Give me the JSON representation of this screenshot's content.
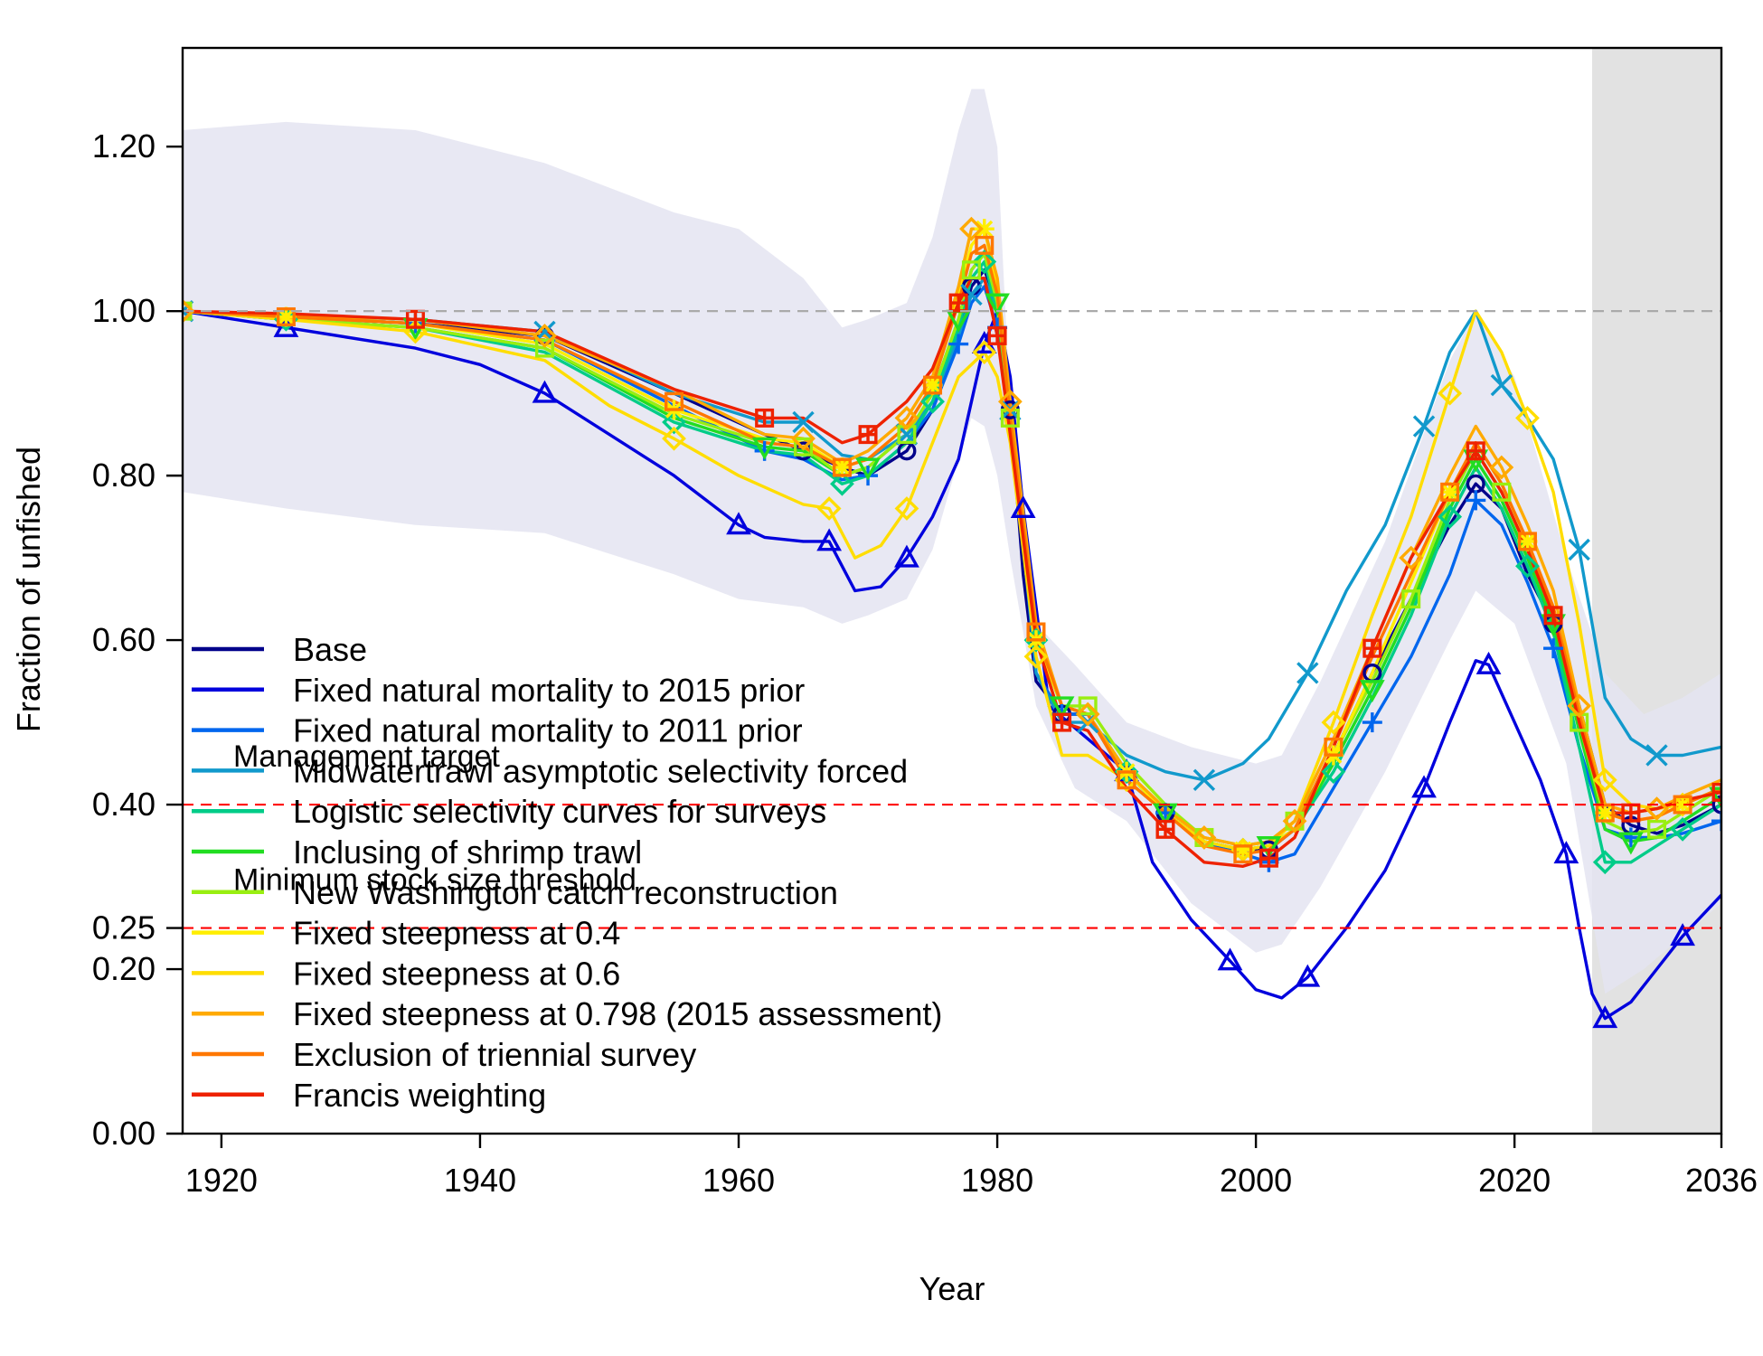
{
  "chart_data": {
    "type": "line",
    "xlabel": "Year",
    "ylabel": "Fraction of unfished",
    "xlim": [
      1917,
      2036
    ],
    "ylim": [
      0,
      1.32
    ],
    "x_ticks": [
      1920,
      1940,
      1960,
      1980,
      2000,
      2020,
      2036
    ],
    "x_tick_labels": [
      "1920",
      "1940",
      "1960",
      "1980",
      "2000",
      "2020",
      "2036"
    ],
    "y_ticks": [
      0,
      0.2,
      0.25,
      0.4,
      0.6,
      0.8,
      1.0,
      1.2
    ],
    "y_tick_labels": [
      "0.00",
      "0.20",
      "0.25",
      "0.40",
      "0.60",
      "0.80",
      "1.00",
      "1.20"
    ],
    "forecast_region": {
      "start": 2026,
      "end": 2036,
      "color": "#e2e2e2"
    },
    "reference_lines": [
      {
        "y": 1.0,
        "label": "",
        "color": "#aaaaaa"
      },
      {
        "y": 0.4,
        "label": "Management target",
        "color": "#ff0000"
      },
      {
        "y": 0.25,
        "label": "Minimum stock size threshold",
        "color": "#ff0000"
      }
    ],
    "uncertainty_band": {
      "color": "#e4e4f1",
      "x": [
        1917,
        1925,
        1935,
        1945,
        1955,
        1960,
        1965,
        1968,
        1970,
        1973,
        1975,
        1977,
        1978,
        1979,
        1980,
        1981,
        1983,
        1986,
        1990,
        1995,
        2000,
        2002,
        2005,
        2010,
        2015,
        2017,
        2020,
        2024,
        2027,
        2030,
        2033,
        2036
      ],
      "upper": [
        1.22,
        1.23,
        1.22,
        1.18,
        1.12,
        1.1,
        1.04,
        0.98,
        0.99,
        1.01,
        1.09,
        1.22,
        1.27,
        1.27,
        1.2,
        0.88,
        0.62,
        0.57,
        0.5,
        0.47,
        0.45,
        0.46,
        0.55,
        0.72,
        0.94,
        1.0,
        0.92,
        0.7,
        0.56,
        0.51,
        0.53,
        0.56
      ],
      "lower": [
        0.78,
        0.76,
        0.74,
        0.73,
        0.68,
        0.65,
        0.64,
        0.62,
        0.63,
        0.65,
        0.71,
        0.82,
        0.87,
        0.86,
        0.8,
        0.7,
        0.52,
        0.42,
        0.38,
        0.28,
        0.22,
        0.23,
        0.3,
        0.44,
        0.6,
        0.66,
        0.62,
        0.45,
        0.17,
        0.2,
        0.24,
        0.28
      ]
    },
    "series": [
      {
        "name": "Base",
        "color": "#00008b",
        "marker": "circle",
        "x": [
          1917,
          1925,
          1935,
          1945,
          1955,
          1962,
          1965,
          1968,
          1970,
          1973,
          1975,
          1977,
          1978,
          1979,
          1980,
          1981,
          1982,
          1983,
          1985,
          1987,
          1990,
          1993,
          1996,
          1999,
          2001,
          2003,
          2006,
          2009,
          2012,
          2015,
          2017,
          2019,
          2021,
          2023,
          2025,
          2027,
          2029,
          2031,
          2033,
          2036
        ],
        "y": [
          1.0,
          0.993,
          0.985,
          0.97,
          0.9,
          0.85,
          0.83,
          0.81,
          0.8,
          0.83,
          0.88,
          0.97,
          1.03,
          1.05,
          1.01,
          0.88,
          0.68,
          0.55,
          0.51,
          0.51,
          0.44,
          0.39,
          0.355,
          0.345,
          0.345,
          0.37,
          0.46,
          0.56,
          0.65,
          0.74,
          0.79,
          0.76,
          0.68,
          0.62,
          0.52,
          0.4,
          0.375,
          0.365,
          0.375,
          0.4
        ]
      },
      {
        "name": "Fixed natural mortality to 2015 prior",
        "color": "#0000dd",
        "marker": "triangle",
        "x": [
          1917,
          1925,
          1935,
          1940,
          1945,
          1950,
          1955,
          1960,
          1962,
          1965,
          1967,
          1969,
          1971,
          1973,
          1975,
          1977,
          1979,
          1980,
          1981,
          1982,
          1984,
          1987,
          1990,
          1992,
          1995,
          1998,
          2000,
          2002,
          2004,
          2007,
          2010,
          2013,
          2015,
          2017,
          2018,
          2020,
          2022,
          2024,
          2025,
          2026,
          2027,
          2029,
          2031,
          2033,
          2036
        ],
        "y": [
          1.0,
          0.98,
          0.955,
          0.935,
          0.9,
          0.85,
          0.8,
          0.74,
          0.725,
          0.72,
          0.72,
          0.66,
          0.665,
          0.7,
          0.75,
          0.82,
          0.96,
          1.0,
          0.92,
          0.76,
          0.52,
          0.48,
          0.44,
          0.33,
          0.26,
          0.21,
          0.175,
          0.165,
          0.19,
          0.25,
          0.32,
          0.42,
          0.5,
          0.575,
          0.57,
          0.5,
          0.43,
          0.34,
          0.25,
          0.17,
          0.14,
          0.16,
          0.2,
          0.24,
          0.29
        ]
      },
      {
        "name": "Fixed natural mortality to 2011 prior",
        "color": "#0066ee",
        "marker": "plus",
        "x": [
          1917,
          1925,
          1935,
          1945,
          1955,
          1962,
          1965,
          1968,
          1970,
          1973,
          1975,
          1977,
          1978,
          1979,
          1980,
          1981,
          1983,
          1985,
          1987,
          1990,
          1993,
          1996,
          1999,
          2001,
          2003,
          2006,
          2009,
          2012,
          2015,
          2017,
          2019,
          2021,
          2023,
          2025,
          2027,
          2029,
          2031,
          2033,
          2036
        ],
        "y": [
          1.0,
          0.993,
          0.985,
          0.965,
          0.885,
          0.83,
          0.82,
          0.795,
          0.8,
          0.84,
          0.88,
          0.96,
          1.01,
          1.03,
          0.98,
          0.87,
          0.56,
          0.51,
          0.51,
          0.43,
          0.39,
          0.355,
          0.34,
          0.33,
          0.34,
          0.42,
          0.5,
          0.58,
          0.68,
          0.77,
          0.74,
          0.67,
          0.59,
          0.47,
          0.37,
          0.36,
          0.36,
          0.365,
          0.38
        ]
      },
      {
        "name": "Midwatertrawl asymptotic selectivity forced",
        "color": "#1199cc",
        "marker": "cross",
        "x": [
          1917,
          1925,
          1935,
          1945,
          1955,
          1962,
          1965,
          1968,
          1970,
          1973,
          1975,
          1977,
          1978,
          1979,
          1980,
          1981,
          1983,
          1985,
          1987,
          1990,
          1993,
          1996,
          1999,
          2001,
          2004,
          2007,
          2010,
          2013,
          2015,
          2017,
          2019,
          2021,
          2023,
          2025,
          2027,
          2029,
          2031,
          2033,
          2036
        ],
        "y": [
          1.0,
          0.995,
          0.99,
          0.975,
          0.9,
          0.865,
          0.865,
          0.825,
          0.82,
          0.85,
          0.89,
          0.97,
          1.02,
          1.04,
          1.0,
          0.88,
          0.56,
          0.5,
          0.5,
          0.46,
          0.44,
          0.43,
          0.45,
          0.48,
          0.56,
          0.66,
          0.74,
          0.86,
          0.95,
          1.0,
          0.91,
          0.87,
          0.82,
          0.71,
          0.53,
          0.48,
          0.46,
          0.46,
          0.47
        ]
      },
      {
        "name": "Logistic selectivity curves for surveys",
        "color": "#00cc88",
        "marker": "diamond",
        "x": [
          1917,
          1925,
          1935,
          1945,
          1955,
          1962,
          1965,
          1968,
          1970,
          1973,
          1975,
          1977,
          1978,
          1979,
          1980,
          1981,
          1983,
          1985,
          1987,
          1990,
          1993,
          1996,
          1999,
          2001,
          2003,
          2006,
          2009,
          2012,
          2015,
          2017,
          2019,
          2021,
          2023,
          2025,
          2027,
          2029,
          2031,
          2033,
          2036
        ],
        "y": [
          1.0,
          0.99,
          0.98,
          0.95,
          0.865,
          0.83,
          0.825,
          0.79,
          0.8,
          0.84,
          0.89,
          0.98,
          1.04,
          1.06,
          1.0,
          0.87,
          0.6,
          0.52,
          0.51,
          0.44,
          0.39,
          0.355,
          0.345,
          0.35,
          0.37,
          0.44,
          0.53,
          0.63,
          0.75,
          0.81,
          0.76,
          0.69,
          0.61,
          0.47,
          0.33,
          0.33,
          0.35,
          0.37,
          0.4
        ]
      },
      {
        "name": "Inclusing of shrimp trawl",
        "color": "#22dd22",
        "marker": "triangle-down",
        "x": [
          1917,
          1925,
          1935,
          1945,
          1955,
          1962,
          1965,
          1968,
          1970,
          1973,
          1975,
          1977,
          1978,
          1979,
          1980,
          1981,
          1983,
          1985,
          1987,
          1990,
          1993,
          1996,
          1999,
          2001,
          2003,
          2006,
          2009,
          2012,
          2015,
          2017,
          2019,
          2021,
          2023,
          2025,
          2027,
          2029,
          2031,
          2033,
          2036
        ],
        "y": [
          1.0,
          0.99,
          0.98,
          0.955,
          0.87,
          0.835,
          0.83,
          0.8,
          0.81,
          0.85,
          0.9,
          0.99,
          1.05,
          1.07,
          1.01,
          0.87,
          0.6,
          0.52,
          0.51,
          0.44,
          0.39,
          0.355,
          0.345,
          0.35,
          0.37,
          0.45,
          0.54,
          0.64,
          0.76,
          0.82,
          0.77,
          0.7,
          0.62,
          0.49,
          0.37,
          0.355,
          0.36,
          0.38,
          0.41
        ]
      },
      {
        "name": "New Washington catch reconstruction",
        "color": "#99ee11",
        "marker": "square",
        "x": [
          1917,
          1925,
          1935,
          1945,
          1955,
          1962,
          1965,
          1968,
          1970,
          1973,
          1975,
          1977,
          1978,
          1979,
          1980,
          1981,
          1983,
          1985,
          1987,
          1990,
          1993,
          1996,
          1999,
          2001,
          2003,
          2006,
          2009,
          2012,
          2015,
          2017,
          2019,
          2021,
          2023,
          2025,
          2027,
          2029,
          2031,
          2033,
          2036
        ],
        "y": [
          1.0,
          0.99,
          0.98,
          0.955,
          0.875,
          0.84,
          0.835,
          0.8,
          0.81,
          0.85,
          0.9,
          0.99,
          1.05,
          1.07,
          1.01,
          0.87,
          0.6,
          0.52,
          0.52,
          0.45,
          0.4,
          0.36,
          0.35,
          0.355,
          0.38,
          0.46,
          0.55,
          0.65,
          0.77,
          0.83,
          0.78,
          0.71,
          0.63,
          0.5,
          0.38,
          0.365,
          0.37,
          0.39,
          0.42
        ]
      },
      {
        "name": "Fixed steepness at 0.4",
        "color": "#ffee00",
        "marker": "asterisk",
        "x": [
          1917,
          1925,
          1935,
          1945,
          1955,
          1962,
          1965,
          1968,
          1970,
          1973,
          1975,
          1977,
          1978,
          1979,
          1980,
          1981,
          1983,
          1985,
          1987,
          1990,
          1993,
          1996,
          1999,
          2001,
          2003,
          2006,
          2009,
          2012,
          2015,
          2017,
          2019,
          2021,
          2023,
          2025,
          2027,
          2029,
          2031,
          2033,
          2036
        ],
        "y": [
          1.0,
          0.993,
          0.985,
          0.96,
          0.88,
          0.845,
          0.84,
          0.81,
          0.82,
          0.86,
          0.91,
          1.02,
          1.08,
          1.1,
          1.03,
          0.88,
          0.6,
          0.52,
          0.51,
          0.44,
          0.39,
          0.355,
          0.345,
          0.35,
          0.37,
          0.46,
          0.56,
          0.67,
          0.78,
          0.84,
          0.79,
          0.72,
          0.64,
          0.51,
          0.39,
          0.38,
          0.385,
          0.4,
          0.42
        ]
      },
      {
        "name": "Fixed steepness at 0.6",
        "color": "#ffdd00",
        "marker": "diamond",
        "x": [
          1917,
          1925,
          1935,
          1945,
          1950,
          1955,
          1960,
          1965,
          1967,
          1969,
          1971,
          1973,
          1975,
          1977,
          1979,
          1980,
          1981,
          1983,
          1985,
          1987,
          1990,
          1993,
          1996,
          1999,
          2001,
          2003,
          2006,
          2009,
          2012,
          2015,
          2017,
          2019,
          2021,
          2023,
          2025,
          2027,
          2029,
          2031,
          2033,
          2036
        ],
        "y": [
          1.0,
          0.99,
          0.975,
          0.94,
          0.885,
          0.845,
          0.8,
          0.765,
          0.76,
          0.7,
          0.715,
          0.76,
          0.84,
          0.92,
          0.95,
          0.92,
          0.84,
          0.58,
          0.46,
          0.46,
          0.43,
          0.39,
          0.355,
          0.345,
          0.35,
          0.38,
          0.5,
          0.63,
          0.75,
          0.9,
          1.0,
          0.95,
          0.87,
          0.78,
          0.62,
          0.43,
          0.4,
          0.395,
          0.4,
          0.42
        ]
      },
      {
        "name": "Fixed steepness at 0.798 (2015 assessment)",
        "color": "#ffaa00",
        "marker": "diamond",
        "x": [
          1917,
          1925,
          1935,
          1945,
          1955,
          1962,
          1965,
          1968,
          1970,
          1973,
          1975,
          1977,
          1978,
          1979,
          1980,
          1981,
          1983,
          1985,
          1987,
          1990,
          1993,
          1996,
          1999,
          2001,
          2003,
          2006,
          2009,
          2012,
          2015,
          2017,
          2019,
          2021,
          2023,
          2025,
          2027,
          2029,
          2031,
          2033,
          2036
        ],
        "y": [
          1.0,
          0.995,
          0.99,
          0.97,
          0.905,
          0.85,
          0.845,
          0.815,
          0.83,
          0.87,
          0.92,
          1.03,
          1.1,
          1.1,
          1.04,
          0.89,
          0.62,
          0.52,
          0.51,
          0.44,
          0.395,
          0.36,
          0.35,
          0.355,
          0.38,
          0.48,
          0.59,
          0.7,
          0.8,
          0.86,
          0.81,
          0.74,
          0.66,
          0.52,
          0.4,
          0.39,
          0.395,
          0.41,
          0.43
        ]
      },
      {
        "name": "Exclusion of triennial survey",
        "color": "#ff7700",
        "marker": "square",
        "x": [
          1917,
          1925,
          1935,
          1945,
          1955,
          1962,
          1965,
          1968,
          1970,
          1973,
          1975,
          1977,
          1978,
          1979,
          1980,
          1981,
          1983,
          1985,
          1987,
          1990,
          1993,
          1996,
          1999,
          2001,
          2003,
          2006,
          2009,
          2012,
          2015,
          2017,
          2019,
          2021,
          2023,
          2025,
          2027,
          2029,
          2031,
          2033,
          2036
        ],
        "y": [
          1.0,
          0.993,
          0.985,
          0.965,
          0.89,
          0.84,
          0.835,
          0.81,
          0.82,
          0.86,
          0.91,
          1.01,
          1.07,
          1.08,
          1.02,
          0.87,
          0.61,
          0.52,
          0.51,
          0.43,
          0.39,
          0.35,
          0.34,
          0.345,
          0.37,
          0.47,
          0.58,
          0.68,
          0.78,
          0.84,
          0.79,
          0.72,
          0.64,
          0.51,
          0.39,
          0.38,
          0.385,
          0.4,
          0.42
        ]
      },
      {
        "name": "Francis weighting",
        "color": "#ee2200",
        "marker": "boxplus",
        "x": [
          1917,
          1925,
          1935,
          1945,
          1955,
          1962,
          1965,
          1968,
          1970,
          1973,
          1975,
          1977,
          1978,
          1979,
          1980,
          1981,
          1983,
          1985,
          1987,
          1990,
          1993,
          1996,
          1999,
          2001,
          2003,
          2006,
          2009,
          2012,
          2015,
          2017,
          2019,
          2021,
          2023,
          2025,
          2027,
          2029,
          2031,
          2033,
          2036
        ],
        "y": [
          1.0,
          0.997,
          0.99,
          0.975,
          0.905,
          0.87,
          0.87,
          0.84,
          0.85,
          0.89,
          0.93,
          1.01,
          1.04,
          1.04,
          0.97,
          0.85,
          0.6,
          0.5,
          0.49,
          0.42,
          0.37,
          0.33,
          0.325,
          0.335,
          0.36,
          0.47,
          0.59,
          0.7,
          0.78,
          0.83,
          0.78,
          0.71,
          0.63,
          0.5,
          0.39,
          0.39,
          0.395,
          0.405,
          0.415
        ]
      }
    ]
  }
}
